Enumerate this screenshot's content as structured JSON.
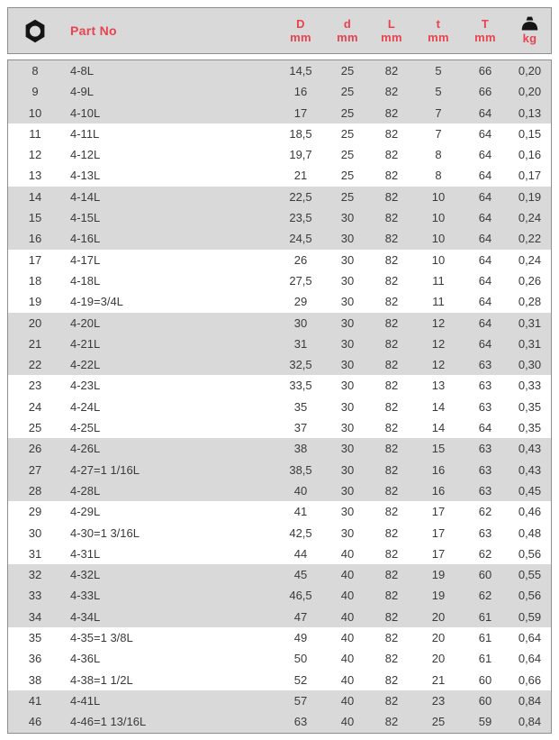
{
  "colors": {
    "accent_red": "#e8434f",
    "band_gray": "#d9d9d9",
    "border_gray": "#8e8e8e",
    "text_dark": "#3a3a3a",
    "icon_black": "#151515"
  },
  "header": {
    "hex_icon": "hex-socket-icon",
    "part_no_label": "Part No",
    "dim_columns": [
      {
        "label": "D",
        "unit": "mm"
      },
      {
        "label": "d",
        "unit": "mm"
      },
      {
        "label": "L",
        "unit": "mm"
      },
      {
        "label": "t",
        "unit": "mm"
      },
      {
        "label": "T",
        "unit": "mm"
      }
    ],
    "weight_column": {
      "icon": "weight-icon",
      "unit": "kg"
    }
  },
  "table": {
    "columns": [
      "hex_size",
      "part_no",
      "D_mm",
      "d_mm",
      "L_mm",
      "t_mm",
      "T_mm",
      "kg"
    ],
    "rows": [
      [
        "8",
        "4-8L",
        "14,5",
        "25",
        "82",
        "5",
        "66",
        "0,20"
      ],
      [
        "9",
        "4-9L",
        "16",
        "25",
        "82",
        "5",
        "66",
        "0,20"
      ],
      [
        "10",
        "4-10L",
        "17",
        "25",
        "82",
        "7",
        "64",
        "0,13"
      ],
      [
        "11",
        "4-11L",
        "18,5",
        "25",
        "82",
        "7",
        "64",
        "0,15"
      ],
      [
        "12",
        "4-12L",
        "19,7",
        "25",
        "82",
        "8",
        "64",
        "0,16"
      ],
      [
        "13",
        "4-13L",
        "21",
        "25",
        "82",
        "8",
        "64",
        "0,17"
      ],
      [
        "14",
        "4-14L",
        "22,5",
        "25",
        "82",
        "10",
        "64",
        "0,19"
      ],
      [
        "15",
        "4-15L",
        "23,5",
        "30",
        "82",
        "10",
        "64",
        "0,24"
      ],
      [
        "16",
        "4-16L",
        "24,5",
        "30",
        "82",
        "10",
        "64",
        "0,22"
      ],
      [
        "17",
        "4-17L",
        "26",
        "30",
        "82",
        "10",
        "64",
        "0,24"
      ],
      [
        "18",
        "4-18L",
        "27,5",
        "30",
        "82",
        "11",
        "64",
        "0,26"
      ],
      [
        "19",
        "4-19=3/4L",
        "29",
        "30",
        "82",
        "11",
        "64",
        "0,28"
      ],
      [
        "20",
        "4-20L",
        "30",
        "30",
        "82",
        "12",
        "64",
        "0,31"
      ],
      [
        "21",
        "4-21L",
        "31",
        "30",
        "82",
        "12",
        "64",
        "0,31"
      ],
      [
        "22",
        "4-22L",
        "32,5",
        "30",
        "82",
        "12",
        "63",
        "0,30"
      ],
      [
        "23",
        "4-23L",
        "33,5",
        "30",
        "82",
        "13",
        "63",
        "0,33"
      ],
      [
        "24",
        "4-24L",
        "35",
        "30",
        "82",
        "14",
        "63",
        "0,35"
      ],
      [
        "25",
        "4-25L",
        "37",
        "30",
        "82",
        "14",
        "64",
        "0,35"
      ],
      [
        "26",
        "4-26L",
        "38",
        "30",
        "82",
        "15",
        "63",
        "0,43"
      ],
      [
        "27",
        "4-27=1 1/16L",
        "38,5",
        "30",
        "82",
        "16",
        "63",
        "0,43"
      ],
      [
        "28",
        "4-28L",
        "40",
        "30",
        "82",
        "16",
        "63",
        "0,45"
      ],
      [
        "29",
        "4-29L",
        "41",
        "30",
        "82",
        "17",
        "62",
        "0,46"
      ],
      [
        "30",
        "4-30=1 3/16L",
        "42,5",
        "30",
        "82",
        "17",
        "63",
        "0,48"
      ],
      [
        "31",
        "4-31L",
        "44",
        "40",
        "82",
        "17",
        "62",
        "0,56"
      ],
      [
        "32",
        "4-32L",
        "45",
        "40",
        "82",
        "19",
        "60",
        "0,55"
      ],
      [
        "33",
        "4-33L",
        "46,5",
        "40",
        "82",
        "19",
        "62",
        "0,56"
      ],
      [
        "34",
        "4-34L",
        "47",
        "40",
        "82",
        "20",
        "61",
        "0,59"
      ],
      [
        "35",
        "4-35=1 3/8L",
        "49",
        "40",
        "82",
        "20",
        "61",
        "0,64"
      ],
      [
        "36",
        "4-36L",
        "50",
        "40",
        "82",
        "20",
        "61",
        "0,64"
      ],
      [
        "38",
        "4-38=1 1/2L",
        "52",
        "40",
        "82",
        "21",
        "60",
        "0,66"
      ],
      [
        "41",
        "4-41L",
        "57",
        "40",
        "82",
        "23",
        "60",
        "0,84"
      ],
      [
        "46",
        "4-46=1 13/16L",
        "63",
        "40",
        "82",
        "25",
        "59",
        "0,84"
      ]
    ]
  }
}
